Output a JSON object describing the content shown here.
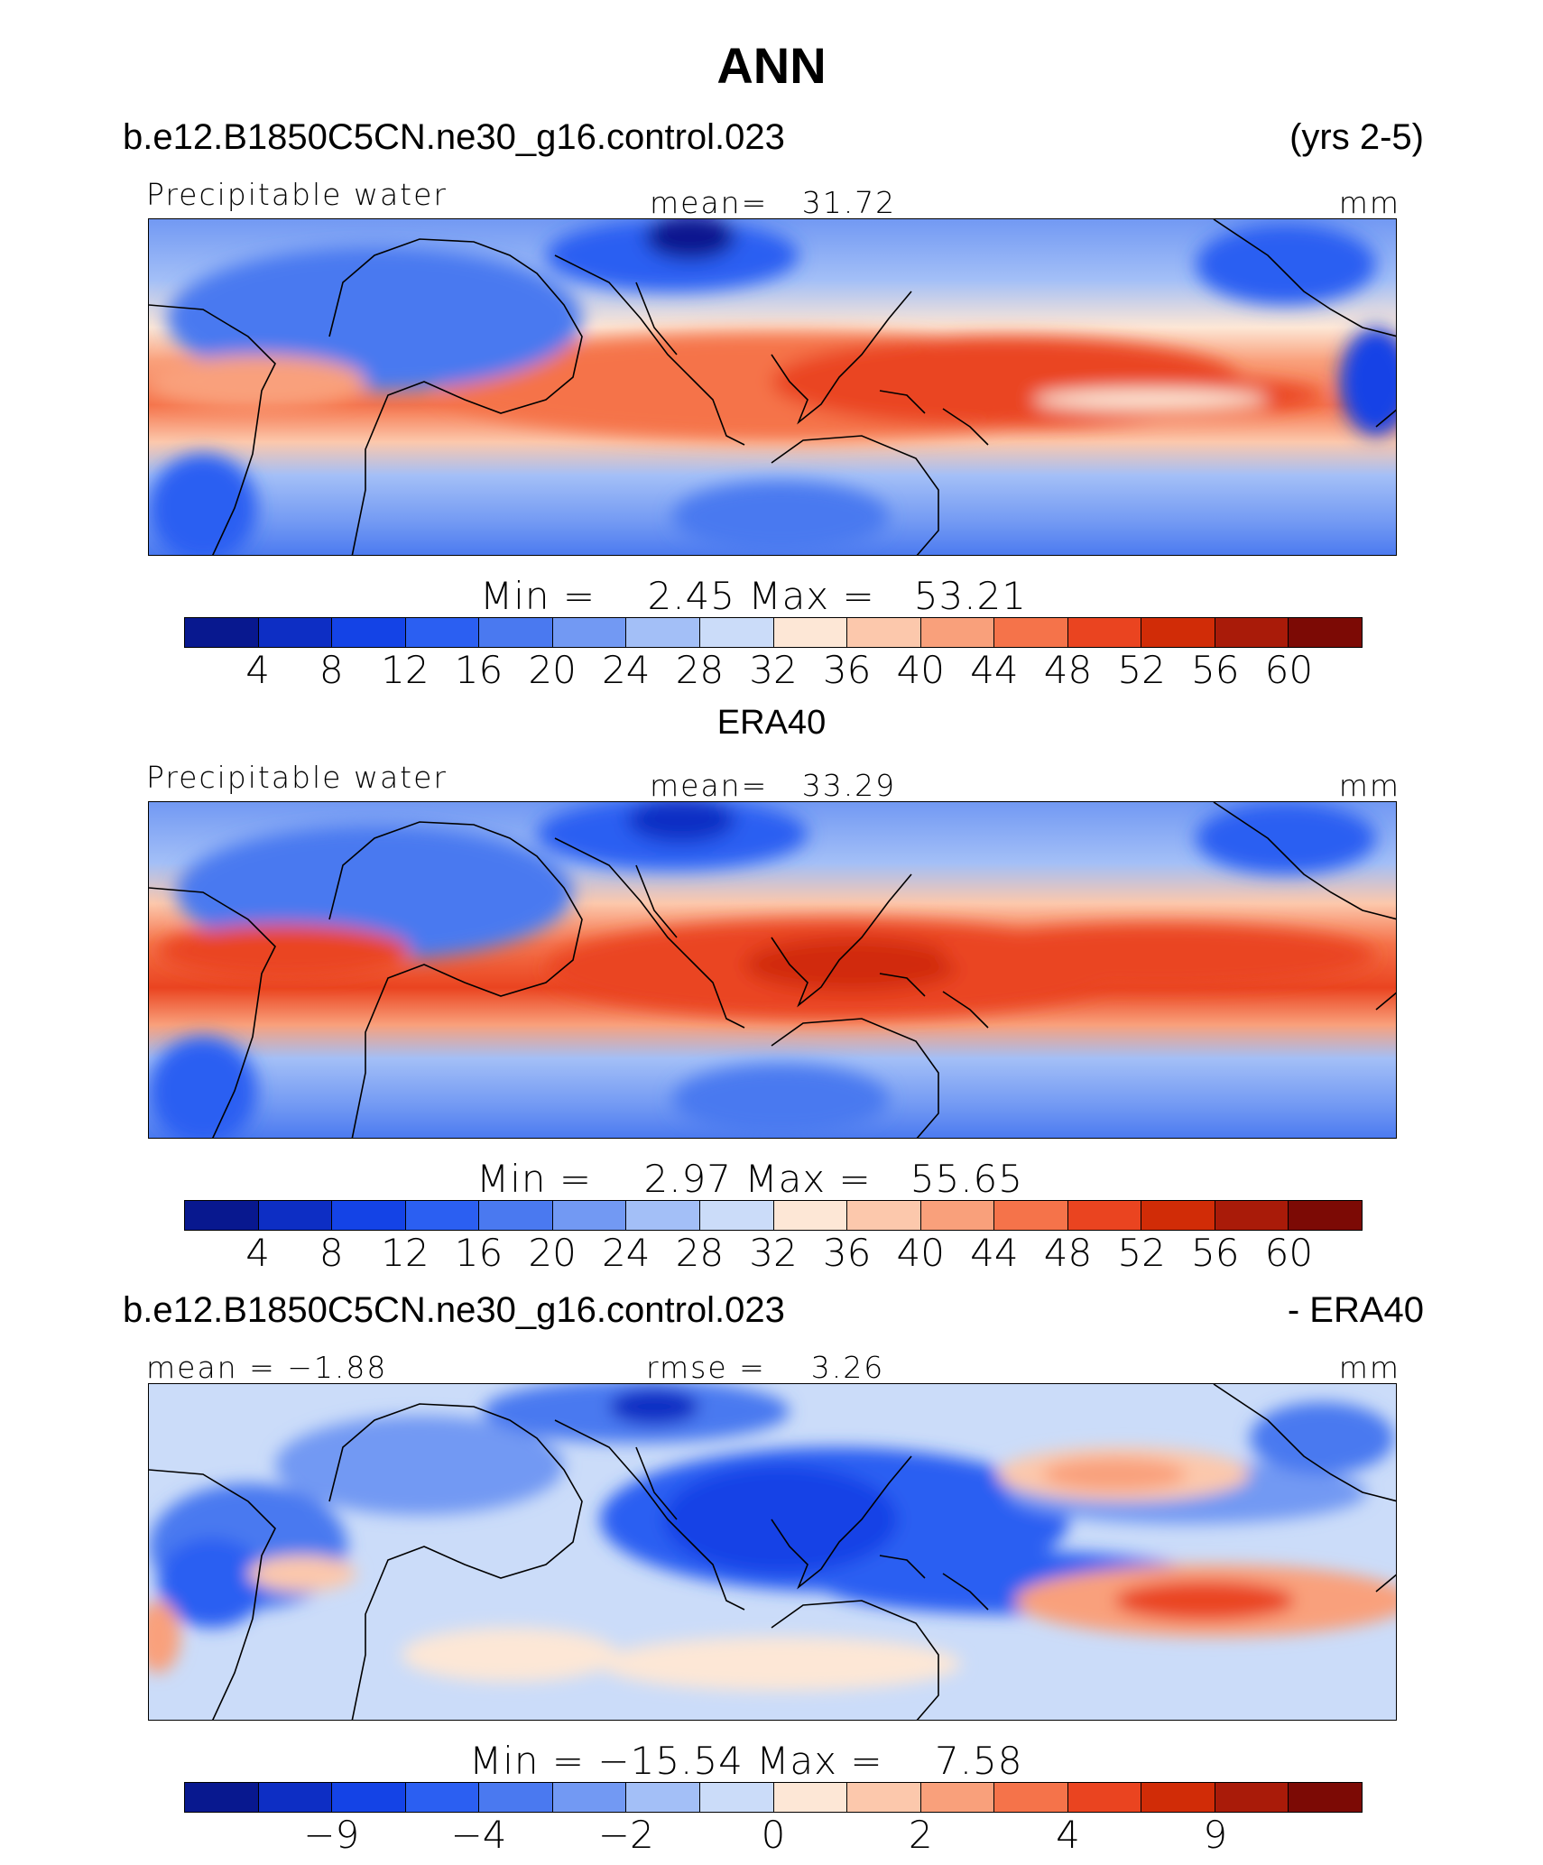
{
  "main_title": "ANN",
  "colors": {
    "palette": [
      "#08188f",
      "#0d2ec4",
      "#1443e6",
      "#2b5ff2",
      "#4a79f0",
      "#7299f3",
      "#a3bff7",
      "#cbdcf9",
      "#fde7d6",
      "#fcc8ac",
      "#f9a07b",
      "#f5734a",
      "#ea4420",
      "#d12c07",
      "#a91b09",
      "#7c0a05"
    ],
    "land_line": "#000000",
    "frame": "#000000"
  },
  "panels": [
    {
      "id": "model",
      "case_title": "b.e12.B1850C5CN.ne30_g16.control.023",
      "right_title": "(yrs 2-5)",
      "left_label": "Precipitable water",
      "center_label": "mean=   31.72",
      "units": "mm",
      "min_max": "Min =    2.45 Max =   53.21",
      "colorbar_labels": [
        "4",
        "8",
        "12",
        "16",
        "20",
        "24",
        "28",
        "32",
        "36",
        "40",
        "44",
        "48",
        "52",
        "56",
        "60"
      ]
    },
    {
      "id": "obs",
      "case_title": "ERA40",
      "left_label": "Precipitable water",
      "center_label": "mean=   33.29",
      "units": "mm",
      "min_max": "Min =    2.97 Max =   55.65",
      "colorbar_labels": [
        "4",
        "8",
        "12",
        "16",
        "20",
        "24",
        "28",
        "32",
        "36",
        "40",
        "44",
        "48",
        "52",
        "56",
        "60"
      ]
    },
    {
      "id": "diff",
      "case_title": "b.e12.B1850C5CN.ne30_g16.control.023",
      "right_title": "- ERA40",
      "left_label": "mean = −1.88",
      "center_label": "rmse =    3.26",
      "units": "mm",
      "min_max": "Min = −15.54 Max =    7.58",
      "colorbar_labels": [
        "−9",
        "−4",
        "−2",
        "0",
        "2",
        "4",
        "9"
      ]
    }
  ]
}
